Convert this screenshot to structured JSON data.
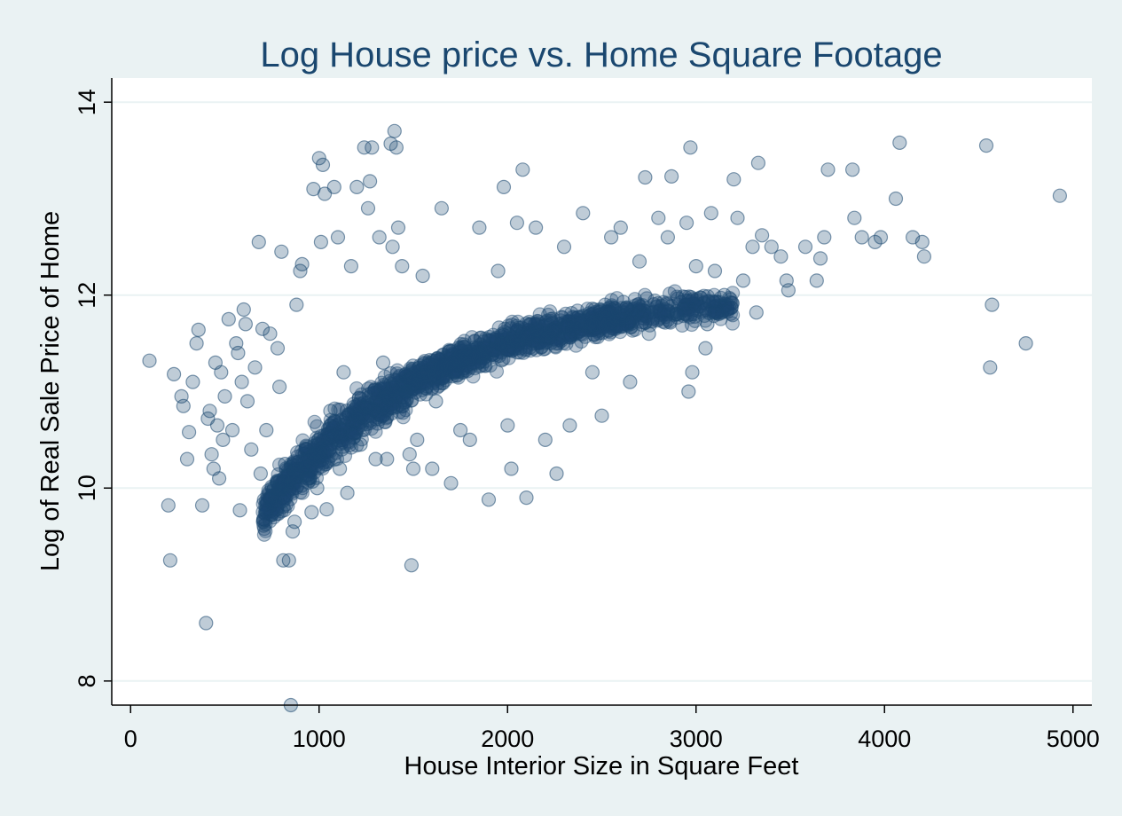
{
  "chart_data": {
    "type": "scatter",
    "title": "Log House price vs. Home Square Footage",
    "xlabel": "House Interior Size in Square Feet",
    "ylabel": "Log of Real Sale Price of Home",
    "xlim": [
      -100,
      5100
    ],
    "ylim": [
      7.75,
      14.25
    ],
    "x_ticks": [
      0,
      1000,
      2000,
      3000,
      4000,
      5000
    ],
    "x_tick_labels": [
      "0",
      "1000",
      "2000",
      "3000",
      "4000",
      "5000"
    ],
    "y_ticks": [
      8,
      10,
      12,
      14
    ],
    "y_tick_labels": [
      "8",
      "10",
      "12",
      "14"
    ],
    "grid": true,
    "marker_color": "#1a476f",
    "plot_background": "#ffffff",
    "page_background": "#eaf2f3",
    "series": [
      {
        "points": [
          [
            100,
            11.32
          ],
          [
            200,
            9.82
          ],
          [
            210,
            9.25
          ],
          [
            230,
            11.18
          ],
          [
            270,
            10.95
          ],
          [
            280,
            10.85
          ],
          [
            300,
            10.3
          ],
          [
            310,
            10.58
          ],
          [
            330,
            11.1
          ],
          [
            350,
            11.5
          ],
          [
            360,
            11.64
          ],
          [
            380,
            9.82
          ],
          [
            400,
            8.6
          ],
          [
            410,
            10.72
          ],
          [
            420,
            10.8
          ],
          [
            430,
            10.35
          ],
          [
            440,
            10.2
          ],
          [
            450,
            11.3
          ],
          [
            460,
            10.65
          ],
          [
            470,
            10.1
          ],
          [
            480,
            11.2
          ],
          [
            490,
            10.5
          ],
          [
            500,
            10.95
          ],
          [
            520,
            11.75
          ],
          [
            540,
            10.6
          ],
          [
            560,
            11.5
          ],
          [
            570,
            11.4
          ],
          [
            580,
            9.77
          ],
          [
            590,
            11.1
          ],
          [
            600,
            11.85
          ],
          [
            610,
            11.7
          ],
          [
            620,
            10.9
          ],
          [
            640,
            10.4
          ],
          [
            660,
            11.25
          ],
          [
            680,
            12.55
          ],
          [
            690,
            10.15
          ],
          [
            700,
            11.65
          ],
          [
            720,
            10.6
          ],
          [
            740,
            11.6
          ],
          [
            760,
            10.0
          ],
          [
            780,
            11.45
          ],
          [
            790,
            11.05
          ],
          [
            800,
            12.45
          ],
          [
            810,
            9.25
          ],
          [
            820,
            10.25
          ],
          [
            840,
            9.25
          ],
          [
            850,
            7.75
          ],
          [
            860,
            9.55
          ],
          [
            870,
            9.65
          ],
          [
            880,
            11.9
          ],
          [
            900,
            12.25
          ],
          [
            910,
            12.32
          ],
          [
            940,
            10.1
          ],
          [
            960,
            9.75
          ],
          [
            970,
            13.1
          ],
          [
            990,
            10.0
          ],
          [
            1000,
            13.42
          ],
          [
            1010,
            12.55
          ],
          [
            1020,
            13.35
          ],
          [
            1030,
            13.05
          ],
          [
            1040,
            9.78
          ],
          [
            1060,
            10.8
          ],
          [
            1080,
            13.12
          ],
          [
            1100,
            12.6
          ],
          [
            1110,
            10.2
          ],
          [
            1130,
            11.2
          ],
          [
            1150,
            9.95
          ],
          [
            1170,
            12.3
          ],
          [
            1200,
            13.12
          ],
          [
            1220,
            10.45
          ],
          [
            1240,
            13.53
          ],
          [
            1260,
            12.9
          ],
          [
            1270,
            13.18
          ],
          [
            1280,
            13.53
          ],
          [
            1300,
            10.3
          ],
          [
            1320,
            12.6
          ],
          [
            1340,
            11.3
          ],
          [
            1360,
            10.3
          ],
          [
            1380,
            13.57
          ],
          [
            1390,
            12.5
          ],
          [
            1400,
            13.7
          ],
          [
            1410,
            13.53
          ],
          [
            1420,
            12.7
          ],
          [
            1440,
            12.3
          ],
          [
            1460,
            11.0
          ],
          [
            1480,
            10.35
          ],
          [
            1490,
            9.2
          ],
          [
            1500,
            10.2
          ],
          [
            1520,
            10.5
          ],
          [
            1550,
            12.2
          ],
          [
            1600,
            10.2
          ],
          [
            1620,
            10.9
          ],
          [
            1650,
            12.9
          ],
          [
            1700,
            10.05
          ],
          [
            1750,
            10.6
          ],
          [
            1800,
            10.5
          ],
          [
            1850,
            12.7
          ],
          [
            1900,
            9.88
          ],
          [
            1950,
            12.25
          ],
          [
            1980,
            13.12
          ],
          [
            2000,
            10.65
          ],
          [
            2020,
            10.2
          ],
          [
            2050,
            12.75
          ],
          [
            2080,
            13.3
          ],
          [
            2100,
            9.9
          ],
          [
            2150,
            12.7
          ],
          [
            2200,
            10.5
          ],
          [
            2260,
            10.15
          ],
          [
            2300,
            12.5
          ],
          [
            2330,
            10.65
          ],
          [
            2400,
            12.85
          ],
          [
            2450,
            11.2
          ],
          [
            2500,
            10.75
          ],
          [
            2550,
            12.6
          ],
          [
            2600,
            12.7
          ],
          [
            2650,
            11.1
          ],
          [
            2700,
            12.35
          ],
          [
            2730,
            13.22
          ],
          [
            2750,
            11.6
          ],
          [
            2800,
            12.8
          ],
          [
            2850,
            12.6
          ],
          [
            2870,
            13.23
          ],
          [
            2900,
            11.8
          ],
          [
            2950,
            12.75
          ],
          [
            2960,
            11.0
          ],
          [
            2970,
            13.53
          ],
          [
            2980,
            11.2
          ],
          [
            3000,
            12.3
          ],
          [
            3050,
            11.45
          ],
          [
            3060,
            11.7
          ],
          [
            3080,
            12.85
          ],
          [
            3100,
            12.25
          ],
          [
            3150,
            12.0
          ],
          [
            3200,
            13.2
          ],
          [
            3220,
            12.8
          ],
          [
            3250,
            12.15
          ],
          [
            3300,
            12.5
          ],
          [
            3320,
            11.82
          ],
          [
            3330,
            13.37
          ],
          [
            3350,
            12.62
          ],
          [
            3400,
            12.5
          ],
          [
            3450,
            12.4
          ],
          [
            3480,
            12.15
          ],
          [
            3490,
            12.05
          ],
          [
            3580,
            12.5
          ],
          [
            3640,
            12.15
          ],
          [
            3660,
            12.38
          ],
          [
            3680,
            12.6
          ],
          [
            3700,
            13.3
          ],
          [
            3830,
            13.3
          ],
          [
            3840,
            12.8
          ],
          [
            3880,
            12.6
          ],
          [
            3950,
            12.55
          ],
          [
            3980,
            12.6
          ],
          [
            4060,
            13.0
          ],
          [
            4080,
            13.58
          ],
          [
            4150,
            12.6
          ],
          [
            4200,
            12.55
          ],
          [
            4210,
            12.4
          ],
          [
            4540,
            13.55
          ],
          [
            4560,
            11.25
          ],
          [
            4570,
            11.9
          ],
          [
            4750,
            11.5
          ],
          [
            4930,
            13.03
          ]
        ]
      }
    ]
  }
}
